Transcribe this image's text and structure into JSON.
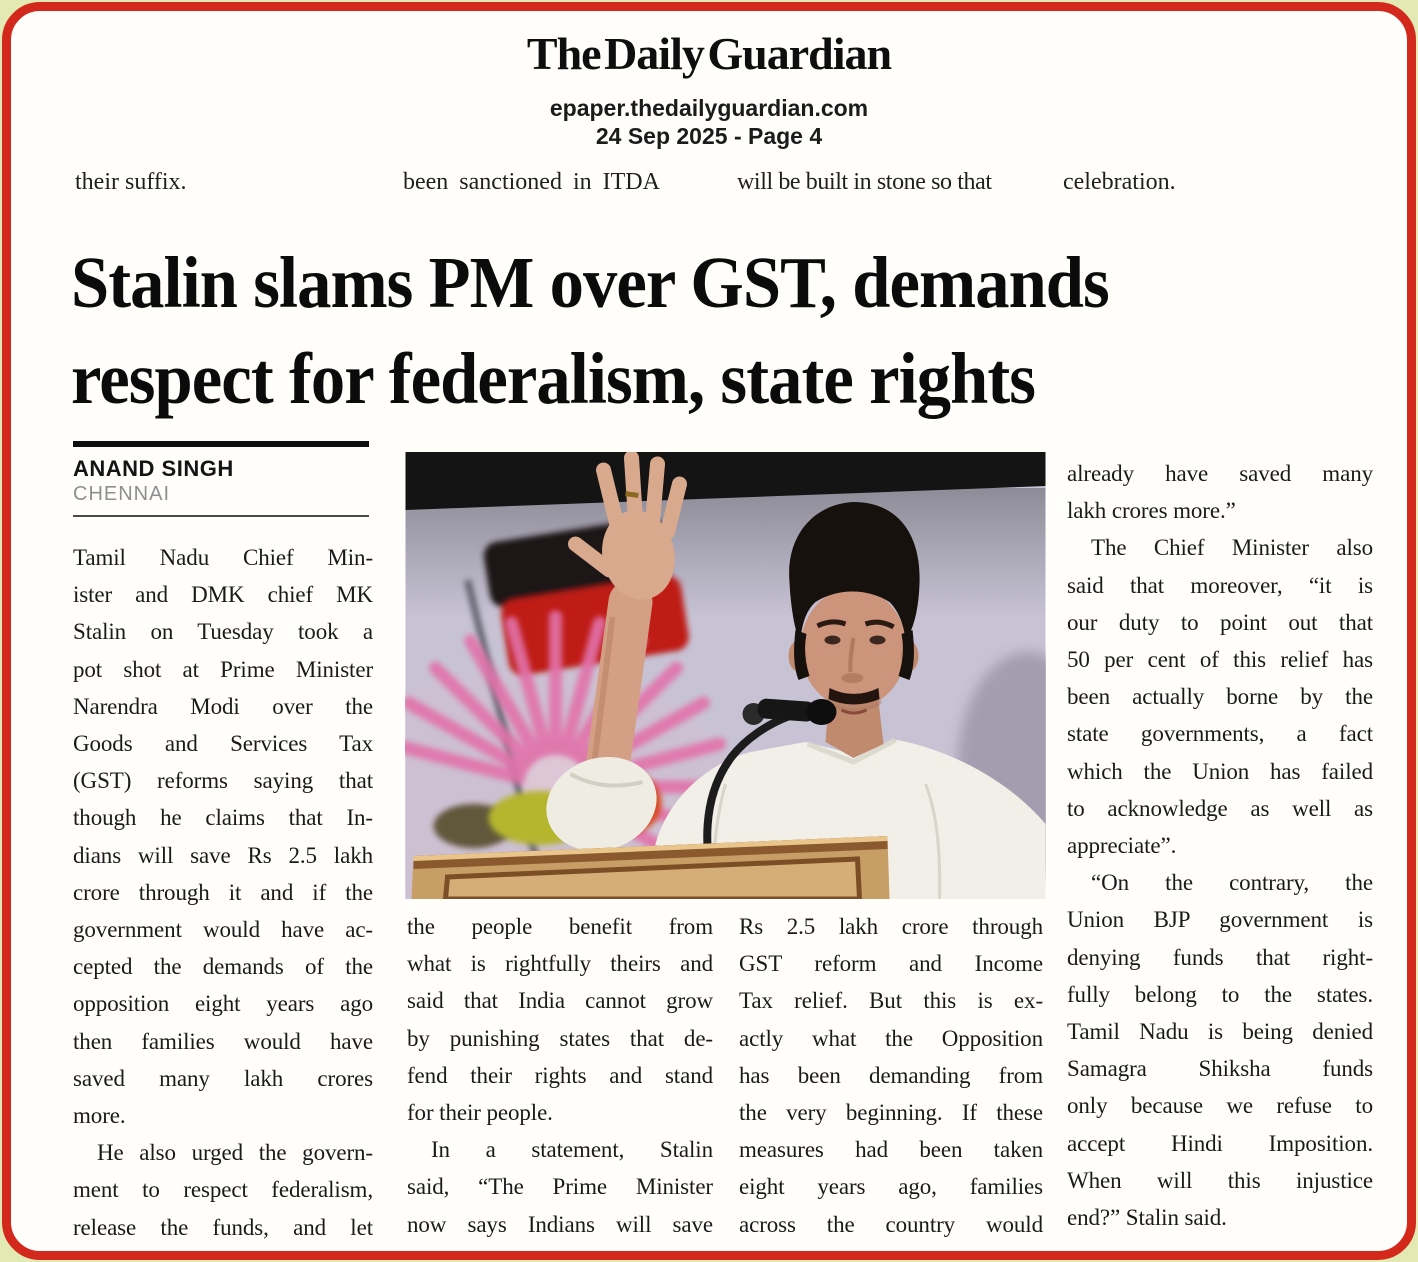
{
  "page": {
    "outer_background": "#e2e9b2",
    "border_color": "#d3281c",
    "paper_color": "#fffefb"
  },
  "masthead": {
    "title": "The Daily Guardian",
    "url": "epaper.thedailyguardian.com",
    "dateline": "24 Sep 2025 - Page 4"
  },
  "top_fragments": [
    "their suffix.",
    "been sanctioned in ITDA",
    "will be built in stone so that",
    "celebration."
  ],
  "headline": {
    "line1": "Stalin slams PM over GST, demands",
    "line2": "respect for federalism, state rights"
  },
  "byline": {
    "author": "ANAND SINGH",
    "city": "CHENNAI"
  },
  "photo": {
    "palette": {
      "background": "#c7c3d5",
      "flag_black": "#1c1818",
      "flag_red": "#bf1d16",
      "sun_pink": "#e272aa",
      "podium_wood": "#c79e66",
      "shirt_white": "#f1efe8"
    }
  },
  "article": {
    "columns": [
      {
        "paragraphs": [
          {
            "indent": false,
            "cont": false,
            "lines": [
              "Tamil Nadu Chief Min-",
              "ister and DMK chief MK",
              "Stalin on Tuesday took a",
              "pot shot at Prime Minister",
              "Narendra Modi over the",
              "Goods and Services Tax",
              "(GST) reforms saying that",
              "though he claims that In-",
              "dians will save Rs 2.5 lakh",
              "crore through it and if the",
              "government would have ac-",
              "cepted the demands of the",
              "opposition eight years ago",
              "then families would have",
              "saved many lakh crores",
              "more."
            ]
          },
          {
            "indent": true,
            "cont": true,
            "lines": [
              "He also urged the govern-",
              "ment to respect federalism,",
              "release the funds, and let"
            ]
          }
        ]
      },
      {
        "paragraphs": [
          {
            "indent": false,
            "cont": false,
            "lines": [
              "the people benefit from",
              "what is rightfully theirs and",
              "said that India cannot grow",
              "by punishing states that de-",
              "fend their rights and stand",
              "for their people."
            ]
          },
          {
            "indent": true,
            "cont": true,
            "lines": [
              "In a statement, Stalin",
              "said, “The Prime Minister",
              "now says Indians will save"
            ]
          }
        ]
      },
      {
        "paragraphs": [
          {
            "indent": false,
            "cont": true,
            "lines": [
              "Rs 2.5 lakh crore through",
              "GST reform and Income",
              "Tax relief. But this is ex-",
              "actly what the Opposition",
              "has been demanding from",
              "the very beginning. If these",
              "measures had been taken",
              "eight years ago, families",
              "across the country would"
            ]
          }
        ]
      },
      {
        "paragraphs": [
          {
            "indent": false,
            "cont": false,
            "lines": [
              "already have saved many",
              "lakh crores more.”"
            ]
          },
          {
            "indent": true,
            "cont": false,
            "lines": [
              "The Chief Minister also",
              "said that moreover, “it is",
              "our duty to point out that",
              "50 per cent of this relief has",
              "been actually borne by the",
              "state governments, a fact",
              "which the Union has failed",
              "to acknowledge as well as",
              "appreciate”."
            ]
          },
          {
            "indent": true,
            "cont": false,
            "lines": [
              "“On the contrary, the",
              "Union BJP government is",
              "denying funds that right-",
              "fully belong to the states.",
              "Tamil Nadu is being denied",
              "Samagra Shiksha funds",
              "only because we refuse to",
              "accept Hindi Imposition.",
              "When will this injustice",
              "end?” Stalin said."
            ]
          }
        ]
      }
    ]
  }
}
